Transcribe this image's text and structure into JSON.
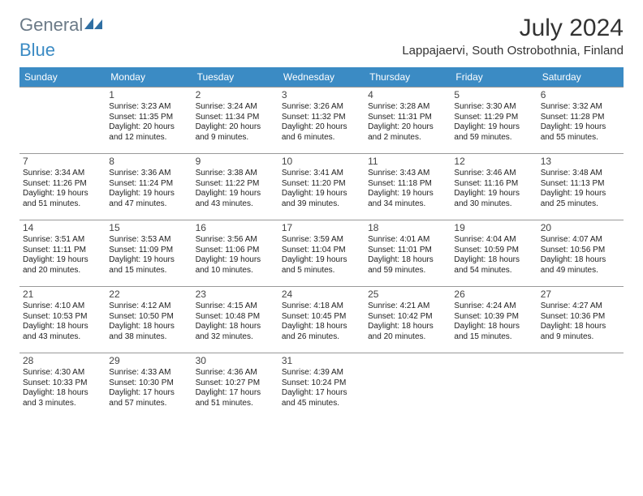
{
  "logo": {
    "general": "General",
    "blue": "Blue"
  },
  "title": "July 2024",
  "location": "Lappajaervi, South Ostrobothnia, Finland",
  "colors": {
    "header_bg": "#3b8bc4",
    "header_text": "#ffffff",
    "border": "#999999",
    "logo_gray": "#6b7a87",
    "logo_blue": "#3b8bc4"
  },
  "fonts": {
    "title_size": 30,
    "location_size": 15,
    "daynum_size": 12,
    "cell_size": 10,
    "header_size": 12
  },
  "day_headers": [
    "Sunday",
    "Monday",
    "Tuesday",
    "Wednesday",
    "Thursday",
    "Friday",
    "Saturday"
  ],
  "grid": [
    [
      {
        "empty": true
      },
      {
        "num": "1",
        "sunrise": "Sunrise: 3:23 AM",
        "sunset": "Sunset: 11:35 PM",
        "dl1": "Daylight: 20 hours",
        "dl2": "and 12 minutes."
      },
      {
        "num": "2",
        "sunrise": "Sunrise: 3:24 AM",
        "sunset": "Sunset: 11:34 PM",
        "dl1": "Daylight: 20 hours",
        "dl2": "and 9 minutes."
      },
      {
        "num": "3",
        "sunrise": "Sunrise: 3:26 AM",
        "sunset": "Sunset: 11:32 PM",
        "dl1": "Daylight: 20 hours",
        "dl2": "and 6 minutes."
      },
      {
        "num": "4",
        "sunrise": "Sunrise: 3:28 AM",
        "sunset": "Sunset: 11:31 PM",
        "dl1": "Daylight: 20 hours",
        "dl2": "and 2 minutes."
      },
      {
        "num": "5",
        "sunrise": "Sunrise: 3:30 AM",
        "sunset": "Sunset: 11:29 PM",
        "dl1": "Daylight: 19 hours",
        "dl2": "and 59 minutes."
      },
      {
        "num": "6",
        "sunrise": "Sunrise: 3:32 AM",
        "sunset": "Sunset: 11:28 PM",
        "dl1": "Daylight: 19 hours",
        "dl2": "and 55 minutes."
      }
    ],
    [
      {
        "num": "7",
        "sunrise": "Sunrise: 3:34 AM",
        "sunset": "Sunset: 11:26 PM",
        "dl1": "Daylight: 19 hours",
        "dl2": "and 51 minutes."
      },
      {
        "num": "8",
        "sunrise": "Sunrise: 3:36 AM",
        "sunset": "Sunset: 11:24 PM",
        "dl1": "Daylight: 19 hours",
        "dl2": "and 47 minutes."
      },
      {
        "num": "9",
        "sunrise": "Sunrise: 3:38 AM",
        "sunset": "Sunset: 11:22 PM",
        "dl1": "Daylight: 19 hours",
        "dl2": "and 43 minutes."
      },
      {
        "num": "10",
        "sunrise": "Sunrise: 3:41 AM",
        "sunset": "Sunset: 11:20 PM",
        "dl1": "Daylight: 19 hours",
        "dl2": "and 39 minutes."
      },
      {
        "num": "11",
        "sunrise": "Sunrise: 3:43 AM",
        "sunset": "Sunset: 11:18 PM",
        "dl1": "Daylight: 19 hours",
        "dl2": "and 34 minutes."
      },
      {
        "num": "12",
        "sunrise": "Sunrise: 3:46 AM",
        "sunset": "Sunset: 11:16 PM",
        "dl1": "Daylight: 19 hours",
        "dl2": "and 30 minutes."
      },
      {
        "num": "13",
        "sunrise": "Sunrise: 3:48 AM",
        "sunset": "Sunset: 11:13 PM",
        "dl1": "Daylight: 19 hours",
        "dl2": "and 25 minutes."
      }
    ],
    [
      {
        "num": "14",
        "sunrise": "Sunrise: 3:51 AM",
        "sunset": "Sunset: 11:11 PM",
        "dl1": "Daylight: 19 hours",
        "dl2": "and 20 minutes."
      },
      {
        "num": "15",
        "sunrise": "Sunrise: 3:53 AM",
        "sunset": "Sunset: 11:09 PM",
        "dl1": "Daylight: 19 hours",
        "dl2": "and 15 minutes."
      },
      {
        "num": "16",
        "sunrise": "Sunrise: 3:56 AM",
        "sunset": "Sunset: 11:06 PM",
        "dl1": "Daylight: 19 hours",
        "dl2": "and 10 minutes."
      },
      {
        "num": "17",
        "sunrise": "Sunrise: 3:59 AM",
        "sunset": "Sunset: 11:04 PM",
        "dl1": "Daylight: 19 hours",
        "dl2": "and 5 minutes."
      },
      {
        "num": "18",
        "sunrise": "Sunrise: 4:01 AM",
        "sunset": "Sunset: 11:01 PM",
        "dl1": "Daylight: 18 hours",
        "dl2": "and 59 minutes."
      },
      {
        "num": "19",
        "sunrise": "Sunrise: 4:04 AM",
        "sunset": "Sunset: 10:59 PM",
        "dl1": "Daylight: 18 hours",
        "dl2": "and 54 minutes."
      },
      {
        "num": "20",
        "sunrise": "Sunrise: 4:07 AM",
        "sunset": "Sunset: 10:56 PM",
        "dl1": "Daylight: 18 hours",
        "dl2": "and 49 minutes."
      }
    ],
    [
      {
        "num": "21",
        "sunrise": "Sunrise: 4:10 AM",
        "sunset": "Sunset: 10:53 PM",
        "dl1": "Daylight: 18 hours",
        "dl2": "and 43 minutes."
      },
      {
        "num": "22",
        "sunrise": "Sunrise: 4:12 AM",
        "sunset": "Sunset: 10:50 PM",
        "dl1": "Daylight: 18 hours",
        "dl2": "and 38 minutes."
      },
      {
        "num": "23",
        "sunrise": "Sunrise: 4:15 AM",
        "sunset": "Sunset: 10:48 PM",
        "dl1": "Daylight: 18 hours",
        "dl2": "and 32 minutes."
      },
      {
        "num": "24",
        "sunrise": "Sunrise: 4:18 AM",
        "sunset": "Sunset: 10:45 PM",
        "dl1": "Daylight: 18 hours",
        "dl2": "and 26 minutes."
      },
      {
        "num": "25",
        "sunrise": "Sunrise: 4:21 AM",
        "sunset": "Sunset: 10:42 PM",
        "dl1": "Daylight: 18 hours",
        "dl2": "and 20 minutes."
      },
      {
        "num": "26",
        "sunrise": "Sunrise: 4:24 AM",
        "sunset": "Sunset: 10:39 PM",
        "dl1": "Daylight: 18 hours",
        "dl2": "and 15 minutes."
      },
      {
        "num": "27",
        "sunrise": "Sunrise: 4:27 AM",
        "sunset": "Sunset: 10:36 PM",
        "dl1": "Daylight: 18 hours",
        "dl2": "and 9 minutes."
      }
    ],
    [
      {
        "num": "28",
        "sunrise": "Sunrise: 4:30 AM",
        "sunset": "Sunset: 10:33 PM",
        "dl1": "Daylight: 18 hours",
        "dl2": "and 3 minutes."
      },
      {
        "num": "29",
        "sunrise": "Sunrise: 4:33 AM",
        "sunset": "Sunset: 10:30 PM",
        "dl1": "Daylight: 17 hours",
        "dl2": "and 57 minutes."
      },
      {
        "num": "30",
        "sunrise": "Sunrise: 4:36 AM",
        "sunset": "Sunset: 10:27 PM",
        "dl1": "Daylight: 17 hours",
        "dl2": "and 51 minutes."
      },
      {
        "num": "31",
        "sunrise": "Sunrise: 4:39 AM",
        "sunset": "Sunset: 10:24 PM",
        "dl1": "Daylight: 17 hours",
        "dl2": "and 45 minutes."
      },
      {
        "empty": true
      },
      {
        "empty": true
      },
      {
        "empty": true
      }
    ]
  ]
}
